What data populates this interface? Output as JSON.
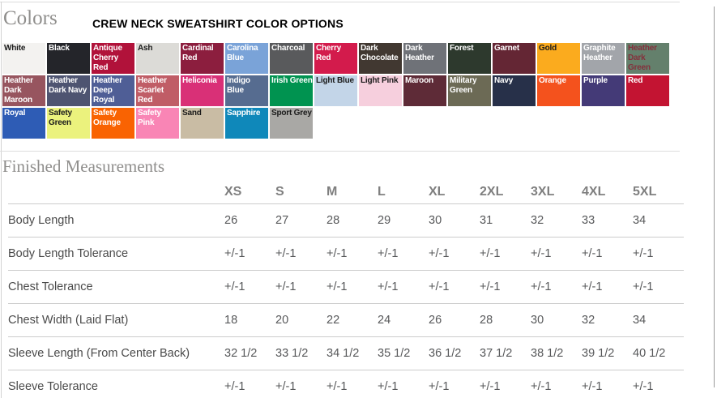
{
  "colors_section": {
    "heading": "Colors",
    "title": "CREW NECK SWEATSHIRT COLOR OPTIONS",
    "swatches": [
      {
        "label": "White",
        "bg": "#f3f2f0",
        "text": "#1a1a1a"
      },
      {
        "label": "Black",
        "bg": "#24252a",
        "text": "#ffffff"
      },
      {
        "label": "Antique Cherry Red",
        "bg": "#b1123a",
        "text": "#ffffff"
      },
      {
        "label": "Ash",
        "bg": "#dcdbd7",
        "text": "#1a1a1a"
      },
      {
        "label": "Cardinal Red",
        "bg": "#8c1e3e",
        "text": "#ffffff"
      },
      {
        "label": "Carolina Blue",
        "bg": "#7aa3d8",
        "text": "#ffffff"
      },
      {
        "label": "Charcoal",
        "bg": "#595a5c",
        "text": "#ffffff"
      },
      {
        "label": "Cherry Red",
        "bg": "#d31b4c",
        "text": "#ffffff"
      },
      {
        "label": "Dark Chocolate",
        "bg": "#413831",
        "text": "#ffffff"
      },
      {
        "label": "Dark Heather",
        "bg": "#6f7278",
        "text": "#ffffff"
      },
      {
        "label": "Forest",
        "bg": "#2d392d",
        "text": "#ffffff"
      },
      {
        "label": "Garnet",
        "bg": "#642634",
        "text": "#ffffff"
      },
      {
        "label": "Gold",
        "bg": "#fbab1e",
        "text": "#1a1a1a"
      },
      {
        "label": "Graphite Heather",
        "bg": "#a2a5aa",
        "text": "#ffffff"
      },
      {
        "label": "Heather Dark Green",
        "bg": "#64806c",
        "text": "#84303c"
      },
      {
        "label": "Heather Dark Maroon",
        "bg": "#97555f",
        "text": "#ffffff"
      },
      {
        "label": "Heather Dark Navy",
        "bg": "#4e5471",
        "text": "#ffffff"
      },
      {
        "label": "Heather Deep Royal",
        "bg": "#4f5e96",
        "text": "#ffffff"
      },
      {
        "label": "Heather Scarlet Red",
        "bg": "#c05d66",
        "text": "#ffffff"
      },
      {
        "label": "Heliconia",
        "bg": "#d93077",
        "text": "#ffffff"
      },
      {
        "label": "Indigo Blue",
        "bg": "#566c90",
        "text": "#ffffff"
      },
      {
        "label": "Irish Green",
        "bg": "#009350",
        "text": "#ffffff"
      },
      {
        "label": "Light Blue",
        "bg": "#c3d5e8",
        "text": "#1a1a1a"
      },
      {
        "label": "Light Pink",
        "bg": "#f6cfdd",
        "text": "#1a1a1a"
      },
      {
        "label": "Maroon",
        "bg": "#5e2b37",
        "text": "#ffffff"
      },
      {
        "label": "Military Green",
        "bg": "#6c6a55",
        "text": "#ffffff"
      },
      {
        "label": "Navy",
        "bg": "#273049",
        "text": "#ffffff"
      },
      {
        "label": "Orange",
        "bg": "#f4521d",
        "text": "#ffffff"
      },
      {
        "label": "Purple",
        "bg": "#443a77",
        "text": "#ffffff"
      },
      {
        "label": "Red",
        "bg": "#c31432",
        "text": "#ffffff"
      },
      {
        "label": "Royal",
        "bg": "#2e5cb5",
        "text": "#ffffff"
      },
      {
        "label": "Safety Green",
        "bg": "#ebf27d",
        "text": "#1a1a1a"
      },
      {
        "label": "Safety Orange",
        "bg": "#f96302",
        "text": "#ffffff"
      },
      {
        "label": "Safety Pink",
        "bg": "#f985b5",
        "text": "#ffffff"
      },
      {
        "label": "Sand",
        "bg": "#c9bca4",
        "text": "#1a1a1a"
      },
      {
        "label": "Sapphire",
        "bg": "#0f88ba",
        "text": "#ffffff"
      },
      {
        "label": "Sport Grey",
        "bg": "#a9a8a5",
        "text": "#1a1a1a"
      }
    ]
  },
  "measurements": {
    "heading": "Finished Measurements",
    "sizes": [
      "XS",
      "S",
      "M",
      "L",
      "XL",
      "2XL",
      "3XL",
      "4XL",
      "5XL"
    ],
    "rows": [
      {
        "label": "Body Length",
        "values": [
          "26",
          "27",
          "28",
          "29",
          "30",
          "31",
          "32",
          "33",
          "34"
        ]
      },
      {
        "label": "Body Length Tolerance",
        "values": [
          "+/-1",
          "+/-1",
          "+/-1",
          "+/-1",
          "+/-1",
          "+/-1",
          "+/-1",
          "+/-1",
          "+/-1"
        ]
      },
      {
        "label": "Chest Tolerance",
        "values": [
          "+/-1",
          "+/-1",
          "+/-1",
          "+/-1",
          "+/-1",
          "+/-1",
          "+/-1",
          "+/-1",
          "+/-1"
        ]
      },
      {
        "label": "Chest Width (Laid Flat)",
        "values": [
          "18",
          "20",
          "22",
          "24",
          "26",
          "28",
          "30",
          "32",
          "34"
        ]
      },
      {
        "label": "Sleeve Length (From Center Back)",
        "values": [
          "32 1/2",
          "33 1/2",
          "34 1/2",
          "35 1/2",
          "36 1/2",
          "37 1/2",
          "38 1/2",
          "39 1/2",
          "40 1/2"
        ]
      },
      {
        "label": "Sleeve Tolerance",
        "values": [
          "+/-1",
          "+/-1",
          "+/-1",
          "+/-1",
          "+/-1",
          "+/-1",
          "+/-1",
          "+/-1",
          "+/-1"
        ]
      }
    ]
  },
  "ui_colors": {
    "heading_text": "#8f8e8c",
    "divider": "#dedede",
    "right_border": "#9b9b9b",
    "table_rule": "#cccccc",
    "size_header_text": "#7f7f7f",
    "value_text": "#57585a"
  }
}
